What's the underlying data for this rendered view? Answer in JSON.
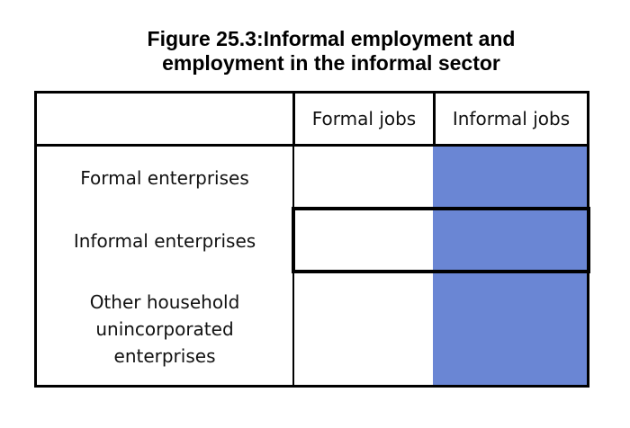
{
  "figure": {
    "title_line1": "Figure 25.3:Informal employment and",
    "title_line2": "employment in the informal sector"
  },
  "table": {
    "corner": "",
    "columns": [
      "Formal jobs",
      "Informal jobs"
    ],
    "rows": [
      "Formal enterprises",
      "Informal enterprises",
      "Other household unincorporated enterprises"
    ],
    "row3_lines": [
      "Other household",
      "unincorporated",
      "enterprises"
    ],
    "shaded_column": "Informal jobs",
    "highlighted_row": "Informal enterprises"
  },
  "colors": {
    "shade": "#6a86d4",
    "border": "#000000"
  }
}
